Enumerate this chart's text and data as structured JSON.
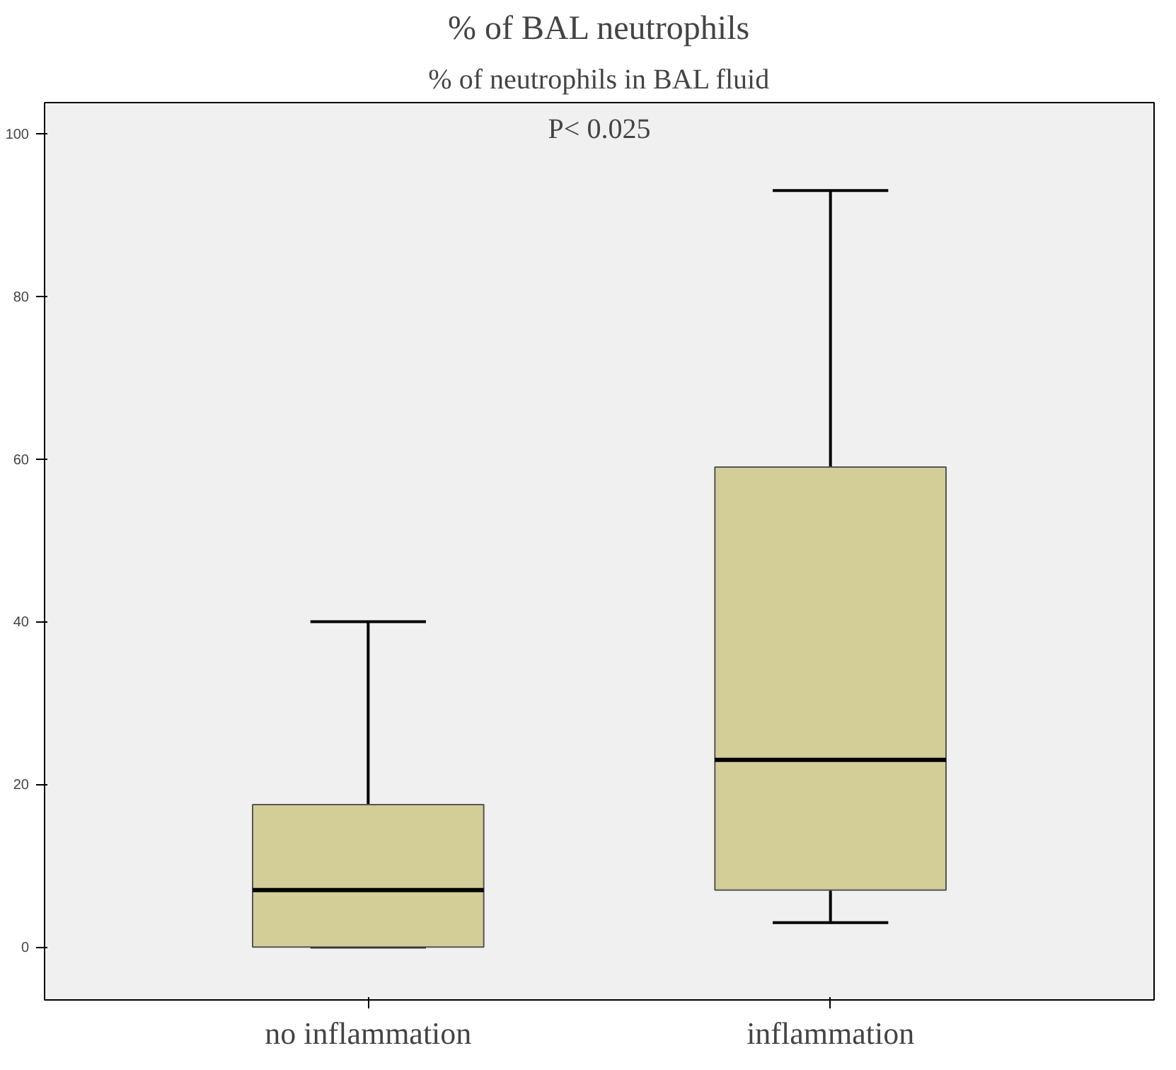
{
  "chart_data": {
    "type": "box",
    "title": "% of BAL neutrophils",
    "subtitle": "% of neutrophils in BAL fluid",
    "annotations": [
      "P< 0.025"
    ],
    "categories": [
      "no inflammation",
      "inflammation"
    ],
    "boxes": [
      {
        "low": 0,
        "q1": 0,
        "median": 7,
        "q3": 17.5,
        "high": 40
      },
      {
        "low": 3,
        "q1": 7,
        "median": 23,
        "q3": 59,
        "high": 93
      }
    ],
    "color": "#d3ce98",
    "ylim": [
      -6.5,
      103.8
    ],
    "yticks": [
      0,
      20,
      40,
      60,
      80,
      100
    ],
    "grid": false
  }
}
